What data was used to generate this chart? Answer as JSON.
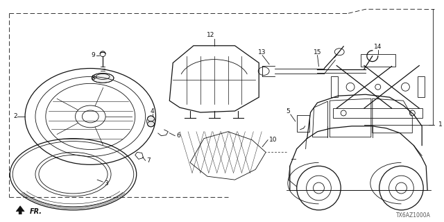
{
  "diagram_code": "TX6AZ1000A",
  "bg_color": "#ffffff"
}
